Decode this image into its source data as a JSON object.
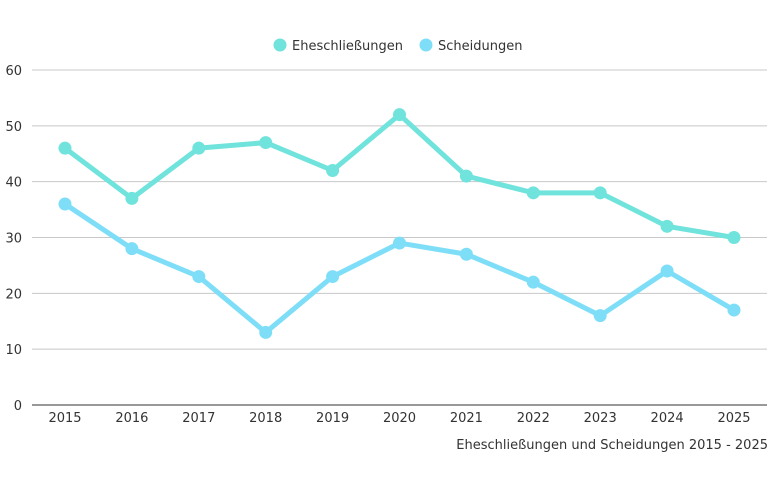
{
  "chart_data": {
    "type": "line",
    "title": "",
    "caption": "Eheschließungen und Scheidungen 2015 - 2025",
    "xlabel": "",
    "ylabel": "",
    "categories": [
      "2015",
      "2016",
      "2017",
      "2018",
      "2019",
      "2020",
      "2021",
      "2022",
      "2023",
      "2024",
      "2025"
    ],
    "ylim": [
      0,
      60
    ],
    "yticks": [
      0,
      10,
      20,
      30,
      40,
      50,
      60
    ],
    "grid": true,
    "legend_position": "top-center",
    "series": [
      {
        "name": "Eheschließungen",
        "color": "#6fe3dc",
        "values": [
          46,
          37,
          46,
          47,
          42,
          52,
          41,
          38,
          38,
          32,
          30
        ]
      },
      {
        "name": "Scheidungen",
        "color": "#7fdef7",
        "values": [
          36,
          28,
          23,
          13,
          23,
          29,
          27,
          22,
          16,
          24,
          17
        ]
      }
    ]
  }
}
